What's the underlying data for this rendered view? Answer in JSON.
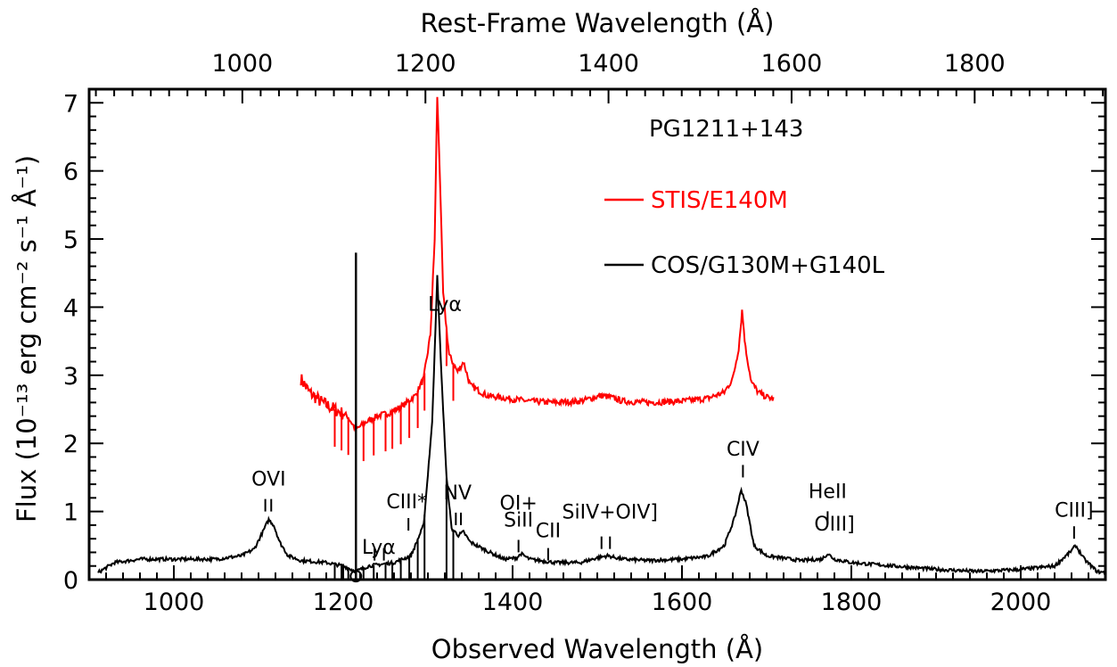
{
  "chart_data": {
    "type": "line",
    "xlabel": "Observed Wavelength (Å)",
    "x2label": "Rest-Frame Wavelength (Å)",
    "ylabel": "Flux (10⁻¹³ erg cm⁻² s⁻¹ Å⁻¹)",
    "xlim": [
      900,
      2100
    ],
    "ylim": [
      0,
      7.2
    ],
    "x_ticks": [
      "1000",
      "1200",
      "1400",
      "1600",
      "1800",
      "2000"
    ],
    "x2_ticks": [
      "1000",
      "1200",
      "1400",
      "1600",
      "1800"
    ],
    "x2_tick_values": [
      1000,
      1200,
      1400,
      1600,
      1800
    ],
    "redshift": 0.0809,
    "y_ticks": [
      "0",
      "1",
      "2",
      "3",
      "4",
      "5",
      "6",
      "7"
    ],
    "object_label": "PG1211+143",
    "series": [
      {
        "name": "STIS/E140M",
        "color": "#ff0000",
        "points": [
          [
            1150,
            2.95
          ],
          [
            1160,
            2.75
          ],
          [
            1175,
            2.6
          ],
          [
            1190,
            2.5
          ],
          [
            1205,
            2.4
          ],
          [
            1215,
            2.2
          ],
          [
            1225,
            2.3
          ],
          [
            1240,
            2.4
          ],
          [
            1255,
            2.45
          ],
          [
            1270,
            2.55
          ],
          [
            1285,
            2.7
          ],
          [
            1295,
            2.95
          ],
          [
            1303,
            3.6
          ],
          [
            1308,
            5.0
          ],
          [
            1311,
            7.1
          ],
          [
            1314,
            6.0
          ],
          [
            1318,
            4.2
          ],
          [
            1325,
            3.3
          ],
          [
            1335,
            3.05
          ],
          [
            1342,
            3.2
          ],
          [
            1350,
            2.85
          ],
          [
            1370,
            2.7
          ],
          [
            1400,
            2.65
          ],
          [
            1420,
            2.62
          ],
          [
            1450,
            2.6
          ],
          [
            1480,
            2.62
          ],
          [
            1505,
            2.7
          ],
          [
            1515,
            2.68
          ],
          [
            1530,
            2.62
          ],
          [
            1560,
            2.6
          ],
          [
            1600,
            2.62
          ],
          [
            1630,
            2.66
          ],
          [
            1650,
            2.75
          ],
          [
            1660,
            2.95
          ],
          [
            1667,
            3.4
          ],
          [
            1671,
            3.95
          ],
          [
            1675,
            3.4
          ],
          [
            1682,
            2.9
          ],
          [
            1690,
            2.75
          ],
          [
            1700,
            2.68
          ],
          [
            1708,
            2.65
          ]
        ]
      },
      {
        "name": "COS/G130M+G140L",
        "color": "#000000",
        "points": [
          [
            910,
            0.1
          ],
          [
            930,
            0.25
          ],
          [
            960,
            0.3
          ],
          [
            1000,
            0.3
          ],
          [
            1050,
            0.3
          ],
          [
            1080,
            0.35
          ],
          [
            1095,
            0.45
          ],
          [
            1105,
            0.7
          ],
          [
            1112,
            0.88
          ],
          [
            1118,
            0.8
          ],
          [
            1125,
            0.55
          ],
          [
            1135,
            0.35
          ],
          [
            1150,
            0.28
          ],
          [
            1180,
            0.25
          ],
          [
            1200,
            0.2
          ],
          [
            1215,
            0.12
          ],
          [
            1230,
            0.2
          ],
          [
            1260,
            0.25
          ],
          [
            1280,
            0.35
          ],
          [
            1295,
            0.8
          ],
          [
            1305,
            2.3
          ],
          [
            1311,
            4.45
          ],
          [
            1316,
            3.0
          ],
          [
            1322,
            1.5
          ],
          [
            1328,
            0.75
          ],
          [
            1336,
            0.65
          ],
          [
            1342,
            0.7
          ],
          [
            1350,
            0.55
          ],
          [
            1370,
            0.42
          ],
          [
            1390,
            0.3
          ],
          [
            1405,
            0.32
          ],
          [
            1410,
            0.38
          ],
          [
            1420,
            0.3
          ],
          [
            1450,
            0.25
          ],
          [
            1480,
            0.25
          ],
          [
            1500,
            0.32
          ],
          [
            1512,
            0.35
          ],
          [
            1530,
            0.3
          ],
          [
            1560,
            0.28
          ],
          [
            1600,
            0.3
          ],
          [
            1630,
            0.34
          ],
          [
            1650,
            0.5
          ],
          [
            1662,
            0.9
          ],
          [
            1670,
            1.32
          ],
          [
            1676,
            1.1
          ],
          [
            1685,
            0.5
          ],
          [
            1700,
            0.35
          ],
          [
            1740,
            0.28
          ],
          [
            1765,
            0.3
          ],
          [
            1772,
            0.38
          ],
          [
            1780,
            0.3
          ],
          [
            1800,
            0.25
          ],
          [
            1850,
            0.2
          ],
          [
            1900,
            0.15
          ],
          [
            1950,
            0.12
          ],
          [
            2000,
            0.15
          ],
          [
            2040,
            0.2
          ],
          [
            2058,
            0.4
          ],
          [
            2065,
            0.5
          ],
          [
            2075,
            0.3
          ],
          [
            2090,
            0.12
          ],
          [
            2100,
            0.1
          ]
        ]
      }
    ],
    "absorption_spikes": [
      1190,
      1198,
      1206,
      1224,
      1236,
      1250,
      1258,
      1268,
      1278,
      1288,
      1296,
      1322,
      1330
    ],
    "geocoronal_spike": {
      "x": 1215,
      "y": 4.8
    },
    "line_labels": [
      {
        "text": "OVI",
        "x": 1112,
        "y": 1.38,
        "ticks": [
          1108,
          1115
        ],
        "tick_y": 1.0
      },
      {
        "text": "Lyα",
        "x": 1242,
        "y": 0.38,
        "ticks": [
          1237,
          1248
        ],
        "tick_y": 0.28
      },
      {
        "text": "CIII*",
        "x": 1275,
        "y": 1.05,
        "ticks": [
          1277
        ],
        "tick_y": 0.72
      },
      {
        "text": "Lyα",
        "x": 1320,
        "y": 3.95,
        "ticks": [],
        "tick_y": 0
      },
      {
        "text": "NV",
        "x": 1335,
        "y": 1.18,
        "ticks": [
          1333,
          1339
        ],
        "tick_y": 0.8
      },
      {
        "text": "OI+",
        "x": 1407,
        "y": 1.03,
        "ticks": [],
        "tick_y": 0
      },
      {
        "text": "SiII",
        "x": 1407,
        "y": 0.78,
        "ticks": [
          1407
        ],
        "tick_y": 0.4
      },
      {
        "text": "CII",
        "x": 1442,
        "y": 0.62,
        "ticks": [
          1442
        ],
        "tick_y": 0.28
      },
      {
        "text": "SiIV+OIV]",
        "x": 1515,
        "y": 0.9,
        "ticks": [
          1505,
          1515
        ],
        "tick_y": 0.45
      },
      {
        "text": "CIV",
        "x": 1672,
        "y": 1.82,
        "ticks": [
          1672
        ],
        "tick_y": 1.5
      },
      {
        "text": "HeII",
        "x": 1772,
        "y": 1.2,
        "ticks": [
          1772
        ],
        "tick_y": 0.82
      },
      {
        "text": "OIII]",
        "x": 1780,
        "y": 0.72,
        "ticks": [],
        "tick_y": 0
      },
      {
        "text": "CIII]",
        "x": 2063,
        "y": 0.92,
        "ticks": [
          2063
        ],
        "tick_y": 0.6
      }
    ]
  }
}
